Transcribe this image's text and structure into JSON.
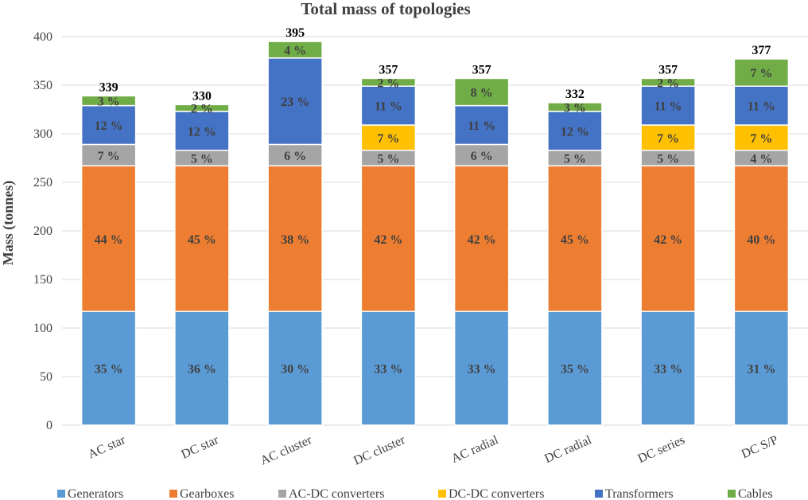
{
  "chart_data": {
    "type": "bar",
    "stacked": true,
    "title": "Total mass of topologies",
    "xlabel": "",
    "ylabel": "Mass (tonnes)",
    "ylim": [
      0,
      400
    ],
    "yticks": [
      "0",
      "50",
      "100",
      "150",
      "200",
      "250",
      "300",
      "350",
      "400"
    ],
    "grid": true,
    "legend_position": "bottom",
    "categories": [
      "AC star",
      "DC star",
      "AC cluster",
      "DC cluster",
      "AC radial",
      "DC radial",
      "DC series",
      "DC S/P"
    ],
    "totals": [
      "339",
      "330",
      "395",
      "357",
      "357",
      "332",
      "357",
      "377"
    ],
    "series": [
      {
        "name": "Generators",
        "color": "#5b9bd5",
        "values": [
          117,
          117,
          117,
          117,
          117,
          117,
          117,
          117
        ],
        "labels": [
          "35 %",
          "36 %",
          "30 %",
          "33 %",
          "33 %",
          "35 %",
          "33 %",
          "31 %"
        ]
      },
      {
        "name": "Gearboxes",
        "color": "#ed7d31",
        "values": [
          150,
          150,
          150,
          150,
          150,
          150,
          150,
          150
        ],
        "labels": [
          "44 %",
          "45 %",
          "38 %",
          "42 %",
          "42 %",
          "45 %",
          "42 %",
          "40 %"
        ]
      },
      {
        "name": "AC-DC converters",
        "color": "#a5a5a5",
        "values": [
          22,
          16,
          22,
          16,
          22,
          16,
          16,
          16
        ],
        "labels": [
          "7 %",
          "5 %",
          "6 %",
          "5 %",
          "6 %",
          "5 %",
          "5 %",
          "4 %"
        ]
      },
      {
        "name": "DC-DC converters",
        "color": "#ffc000",
        "values": [
          0,
          0,
          0,
          26,
          0,
          0,
          26,
          26
        ],
        "labels": [
          "",
          "",
          "",
          "7 %",
          "",
          "",
          "7 %",
          "7 %"
        ]
      },
      {
        "name": "Transformers",
        "color": "#4472c4",
        "values": [
          40,
          40,
          89,
          40,
          40,
          40,
          40,
          40
        ],
        "labels": [
          "12 %",
          "12 %",
          "23 %",
          "11 %",
          "11 %",
          "12 %",
          "11 %",
          "11 %"
        ]
      },
      {
        "name": "Cables",
        "color": "#70ad47",
        "values": [
          10,
          7,
          17,
          8,
          28,
          9,
          8,
          28
        ],
        "labels": [
          "3 %",
          "2 %",
          "4 %",
          "2 %",
          "8 %",
          "3 %",
          "2 %",
          "7 %"
        ]
      }
    ]
  }
}
